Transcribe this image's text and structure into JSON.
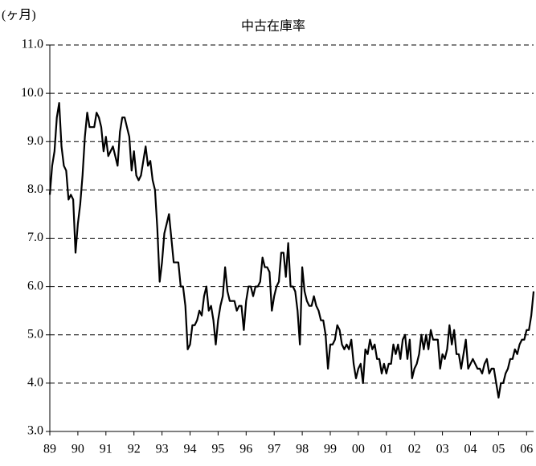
{
  "chart_data": {
    "type": "line",
    "title": "中古在庫率",
    "y_label": "(ヶ月)",
    "categories": [
      "89",
      null,
      null,
      null,
      null,
      null,
      null,
      null,
      null,
      null,
      null,
      null,
      "90",
      null,
      null,
      null,
      null,
      null,
      null,
      null,
      null,
      null,
      null,
      null,
      "91",
      null,
      null,
      null,
      null,
      null,
      null,
      null,
      null,
      null,
      null,
      null,
      "92",
      null,
      null,
      null,
      null,
      null,
      null,
      null,
      null,
      null,
      null,
      null,
      "93",
      null,
      null,
      null,
      null,
      null,
      null,
      null,
      null,
      null,
      null,
      null,
      "94",
      null,
      null,
      null,
      null,
      null,
      null,
      null,
      null,
      null,
      null,
      null,
      "95",
      null,
      null,
      null,
      null,
      null,
      null,
      null,
      null,
      null,
      null,
      null,
      "96",
      null,
      null,
      null,
      null,
      null,
      null,
      null,
      null,
      null,
      null,
      null,
      "97",
      null,
      null,
      null,
      null,
      null,
      null,
      null,
      null,
      null,
      null,
      null,
      "98",
      null,
      null,
      null,
      null,
      null,
      null,
      null,
      null,
      null,
      null,
      null,
      "99",
      null,
      null,
      null,
      null,
      null,
      null,
      null,
      null,
      null,
      null,
      null,
      "00",
      null,
      null,
      null,
      null,
      null,
      null,
      null,
      null,
      null,
      null,
      null,
      "01",
      null,
      null,
      null,
      null,
      null,
      null,
      null,
      null,
      null,
      null,
      null,
      "02",
      null,
      null,
      null,
      null,
      null,
      null,
      null,
      null,
      null,
      null,
      null,
      "03",
      null,
      null,
      null,
      null,
      null,
      null,
      null,
      null,
      null,
      null,
      null,
      "04",
      null,
      null,
      null,
      null,
      null,
      null,
      null,
      null,
      null,
      null,
      null,
      "05",
      null,
      null,
      null,
      null,
      null,
      null,
      null,
      null,
      null,
      null,
      null,
      "06",
      null,
      null,
      null
    ],
    "values": [
      7.9,
      8.5,
      8.8,
      9.5,
      9.8,
      8.9,
      8.5,
      8.4,
      7.8,
      7.9,
      7.8,
      6.7,
      7.3,
      7.7,
      8.3,
      9.1,
      9.6,
      9.3,
      9.3,
      9.3,
      9.6,
      9.5,
      9.3,
      8.8,
      9.1,
      8.7,
      8.8,
      8.9,
      8.7,
      8.5,
      9.2,
      9.5,
      9.5,
      9.3,
      9.1,
      8.4,
      8.8,
      8.3,
      8.2,
      8.3,
      8.6,
      8.9,
      8.5,
      8.6,
      8.2,
      8.0,
      7.2,
      6.1,
      6.5,
      7.1,
      7.3,
      7.5,
      7.0,
      6.5,
      6.5,
      6.5,
      6.0,
      6.0,
      5.6,
      4.7,
      4.8,
      5.2,
      5.2,
      5.3,
      5.5,
      5.4,
      5.8,
      6.0,
      5.5,
      5.6,
      5.3,
      4.8,
      5.3,
      5.6,
      5.8,
      6.4,
      5.9,
      5.7,
      5.7,
      5.7,
      5.5,
      5.6,
      5.6,
      5.1,
      5.7,
      6.0,
      6.0,
      5.8,
      6.0,
      6.0,
      6.1,
      6.6,
      6.4,
      6.4,
      6.3,
      5.5,
      5.8,
      6.0,
      6.1,
      6.7,
      6.7,
      6.2,
      6.9,
      6.0,
      6.0,
      5.9,
      5.5,
      4.8,
      6.4,
      5.9,
      5.7,
      5.6,
      5.6,
      5.8,
      5.6,
      5.5,
      5.3,
      5.3,
      5.0,
      4.3,
      4.8,
      4.8,
      4.9,
      5.2,
      5.1,
      4.8,
      4.7,
      4.8,
      4.7,
      4.9,
      4.4,
      4.1,
      4.3,
      4.4,
      4.0,
      4.7,
      4.6,
      4.9,
      4.7,
      4.8,
      4.5,
      4.5,
      4.2,
      4.4,
      4.2,
      4.4,
      4.4,
      4.8,
      4.6,
      4.8,
      4.5,
      4.9,
      5.0,
      4.5,
      4.9,
      4.1,
      4.3,
      4.4,
      4.6,
      5.0,
      4.7,
      5.0,
      4.7,
      5.1,
      4.9,
      4.9,
      4.9,
      4.3,
      4.6,
      4.5,
      4.7,
      5.2,
      4.8,
      5.1,
      4.6,
      4.6,
      4.3,
      4.6,
      4.9,
      4.3,
      4.4,
      4.5,
      4.4,
      4.3,
      4.3,
      4.2,
      4.4,
      4.5,
      4.2,
      4.3,
      4.3,
      4.0,
      3.7,
      4.0,
      4.0,
      4.2,
      4.3,
      4.5,
      4.5,
      4.7,
      4.6,
      4.8,
      4.9,
      4.9,
      5.1,
      5.1,
      5.4,
      5.9
    ],
    "color": "#000000",
    "ylim": [
      3,
      11
    ],
    "yticks": [
      {
        "value": 3,
        "label": "3.0"
      },
      {
        "value": 4,
        "label": "4.0"
      },
      {
        "value": 5,
        "label": "5.0"
      },
      {
        "value": 6,
        "label": "6.0"
      },
      {
        "value": 7,
        "label": "7.0"
      },
      {
        "value": 8,
        "label": "8.0"
      },
      {
        "value": 9,
        "label": "9.0"
      },
      {
        "value": 10,
        "label": "10.0"
      },
      {
        "value": 11,
        "label": "11.0"
      }
    ],
    "grid": true
  }
}
